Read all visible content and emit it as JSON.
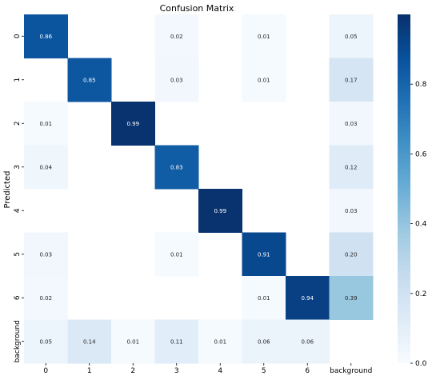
{
  "chart_data": {
    "type": "heatmap",
    "title": "Confusion Matrix",
    "xlabel": "",
    "ylabel": "Predicted",
    "x_categories": [
      "0",
      "1",
      "2",
      "3",
      "4",
      "5",
      "6",
      "background"
    ],
    "y_categories": [
      "0",
      "1",
      "2",
      "3",
      "4",
      "5",
      "6",
      "background"
    ],
    "values": [
      [
        0.86,
        null,
        null,
        0.02,
        null,
        0.01,
        null,
        0.05
      ],
      [
        null,
        0.85,
        null,
        0.03,
        null,
        0.01,
        null,
        0.17
      ],
      [
        0.01,
        null,
        0.99,
        null,
        null,
        null,
        null,
        0.03
      ],
      [
        0.04,
        null,
        null,
        0.83,
        null,
        null,
        null,
        0.12
      ],
      [
        null,
        null,
        null,
        null,
        0.99,
        null,
        null,
        0.03
      ],
      [
        0.03,
        null,
        null,
        0.01,
        null,
        0.91,
        null,
        0.2
      ],
      [
        0.02,
        null,
        null,
        null,
        null,
        0.01,
        0.94,
        0.39
      ],
      [
        0.05,
        0.14,
        0.01,
        0.11,
        0.01,
        0.06,
        0.06,
        null
      ]
    ],
    "value_labels": [
      [
        "0.86",
        "",
        "",
        "0.02",
        "",
        "0.01",
        "",
        "0.05"
      ],
      [
        "",
        "0.85",
        "",
        "0.03",
        "",
        "0.01",
        "",
        "0.17"
      ],
      [
        "0.01",
        "",
        "0.99",
        "",
        "",
        "",
        "",
        "0.03"
      ],
      [
        "0.04",
        "",
        "",
        "0.83",
        "",
        "",
        "",
        "0.12"
      ],
      [
        "",
        "",
        "",
        "",
        "0.99",
        "",
        "",
        "0.03"
      ],
      [
        "0.03",
        "",
        "",
        "0.01",
        "",
        "0.91",
        "",
        "0.20"
      ],
      [
        "0.02",
        "",
        "",
        "",
        "",
        "0.01",
        "0.94",
        "0.39"
      ],
      [
        "0.05",
        "0.14",
        "0.01",
        "0.11",
        "0.01",
        "0.06",
        "0.06",
        ""
      ]
    ],
    "colormap": "Blues",
    "color_range": [
      0,
      1
    ],
    "colorbar": {
      "ticks": [
        0.0,
        0.2,
        0.4,
        0.6,
        0.8
      ],
      "tick_labels": [
        "0.0",
        "0.2",
        "0.4",
        "0.6",
        "0.8"
      ]
    }
  }
}
